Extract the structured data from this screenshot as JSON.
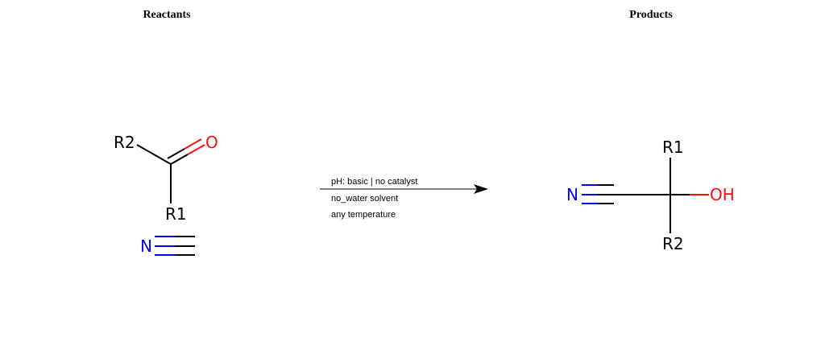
{
  "headings": {
    "reactants": "Reactants",
    "products": "Products"
  },
  "conditions": {
    "line1": "pH: basic | no catalyst",
    "line2": "no_water solvent",
    "line3": "any temperature"
  },
  "reactant_ketone": {
    "r2": "R2",
    "oxygen": "O",
    "r1": "R1"
  },
  "reactant_cyanide": {
    "nitrogen": "N"
  },
  "product": {
    "nitrogen": "N",
    "r1": "R1",
    "r2": "R2",
    "hydroxyl": "OH"
  },
  "colors": {
    "carbon": "#000000",
    "oxygen": "#ff0d0d",
    "nitrogen": "#0000ff",
    "text": "#000000",
    "background": "#ffffff"
  }
}
